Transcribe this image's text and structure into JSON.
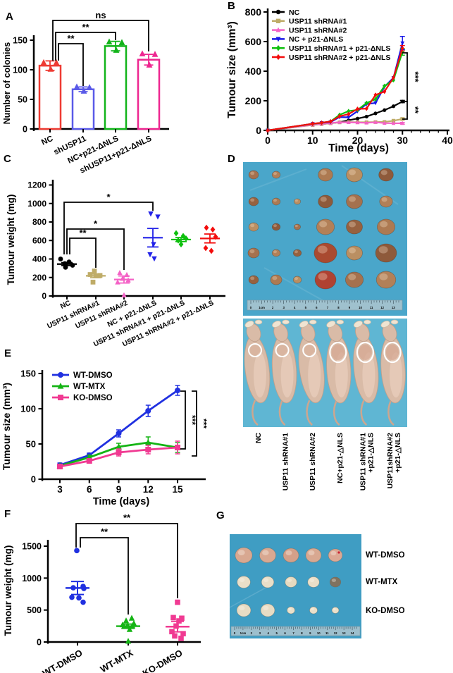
{
  "panels": {
    "A": "A",
    "B": "B",
    "C": "C",
    "D": "D",
    "E": "E",
    "F": "F",
    "G": "G"
  },
  "chart_data": [
    {
      "panel": "A",
      "type": "bar",
      "title": "",
      "ylabel": "Number of colonies",
      "xlabel": "",
      "ylim": [
        0,
        150
      ],
      "yticks": [
        0,
        50,
        100,
        150
      ],
      "categories": [
        "NC",
        "shUSP11",
        "NC+p21-ΔNLS",
        "shUSP11+p21-ΔNLS"
      ],
      "values": [
        107,
        67,
        140,
        117
      ],
      "errors": [
        8,
        4,
        8,
        9
      ],
      "replicates": [
        [
          112,
          101,
          112
        ],
        [
          71,
          64,
          70
        ],
        [
          147,
          133,
          146
        ],
        [
          127,
          108,
          126
        ]
      ],
      "bar_colors": [
        "#EE3B33",
        "#5A5AE8",
        "#12B41A",
        "#EE2690"
      ],
      "significance": [
        {
          "from": 0,
          "to": 1,
          "label": "**"
        },
        {
          "from": 0,
          "to": 2,
          "label": "**"
        },
        {
          "from": 0,
          "to": 3,
          "label": "ns"
        }
      ]
    },
    {
      "panel": "B",
      "type": "line",
      "title": "",
      "ylabel": "Tumour size (mm³)",
      "xlabel": "Time (days)",
      "ylim": [
        0,
        800
      ],
      "yticks": [
        0,
        200,
        400,
        600,
        800
      ],
      "xlim": [
        0,
        40
      ],
      "xticks": [
        0,
        10,
        20,
        30,
        40
      ],
      "x": [
        0,
        10,
        12,
        14,
        16,
        18,
        20,
        22,
        24,
        26,
        28,
        30
      ],
      "legend_position": "top-left",
      "series": [
        {
          "name": "NC",
          "color": "#000000",
          "values": [
            0,
            38,
            43,
            48,
            55,
            68,
            80,
            93,
            115,
            137,
            163,
            195
          ],
          "last_error": 8
        },
        {
          "name": "USP11 shRNA#1",
          "color": "#BFAC68",
          "values": [
            0,
            36,
            42,
            48,
            54,
            56,
            55,
            55,
            56,
            57,
            65,
            77
          ],
          "last_error": 7
        },
        {
          "name": "USP11 shRNA#2",
          "color": "#F462C6",
          "values": [
            0,
            38,
            44,
            50,
            55,
            54,
            53,
            51,
            55,
            49,
            48,
            48
          ],
          "last_error": 6
        },
        {
          "name": "NC + p21-ΔNLS",
          "color": "#1717E8",
          "values": [
            0,
            45,
            51,
            56,
            90,
            88,
            130,
            178,
            185,
            295,
            355,
            590
          ],
          "last_error": 45
        },
        {
          "name": "USP11 shRNA#1 + p21-ΔNLS",
          "color": "#0EC00E",
          "values": [
            0,
            44,
            51,
            60,
            105,
            130,
            138,
            185,
            210,
            300,
            340,
            530
          ],
          "last_error": 22
        },
        {
          "name": "USP11 shRNA#2 + p21-ΔNLS",
          "color": "#F30C0C",
          "values": [
            0,
            45,
            52,
            60,
            95,
            110,
            145,
            147,
            240,
            262,
            357,
            555
          ],
          "last_error": 18
        }
      ],
      "significance": [
        {
          "label": "***"
        },
        {
          "label": "**"
        }
      ]
    },
    {
      "panel": "C",
      "type": "scatter",
      "title": "",
      "ylabel": "Tumour weight (mg)",
      "xlabel": "",
      "ylim": [
        0,
        1200
      ],
      "yticks": [
        0,
        200,
        400,
        600,
        800,
        1000,
        1200
      ],
      "groups": [
        {
          "name": "NC",
          "color": "#000000",
          "marker": "circle",
          "points": [
            400,
            368,
            350,
            332,
            310
          ],
          "mean": 345,
          "sem": 16
        },
        {
          "name": "USP11 shRNA#1",
          "color": "#BFAC68",
          "marker": "square",
          "points": [
            270,
            232,
            222,
            218,
            150
          ],
          "mean": 218,
          "sem": 20
        },
        {
          "name": "USP11 shRNA#2",
          "color": "#F462C6",
          "marker": "triangle",
          "points": [
            250,
            228,
            188,
            170,
            148,
            8
          ],
          "mean": 178,
          "sem": 38
        },
        {
          "name": "NC + p21-ΔNLS",
          "color": "#2222E8",
          "marker": "tdown",
          "points": [
            890,
            858,
            560,
            450,
            405
          ],
          "mean": 630,
          "sem": 100
        },
        {
          "name": "USP11 shRNA#1 + p21-ΔNLS",
          "color": "#0EC00E",
          "marker": "diamond",
          "points": [
            678,
            648,
            622,
            600,
            558
          ],
          "mean": 610,
          "sem": 22
        },
        {
          "name": "USP11 shRNA#2 + p21-ΔNLS",
          "color": "#F30C0C",
          "marker": "diamond",
          "points": [
            738,
            718,
            640,
            518,
            488
          ],
          "mean": 622,
          "sem": 48
        }
      ],
      "significance": [
        {
          "from": 0,
          "to": 1,
          "label": "**"
        },
        {
          "from": 0,
          "to": 2,
          "label": "*"
        },
        {
          "from": 0,
          "to": 3,
          "label": "*"
        }
      ]
    },
    {
      "panel": "E",
      "type": "line",
      "title": "",
      "ylabel": "Tumour size (mm³)",
      "xlabel": "Time (days)",
      "ylim": [
        0,
        150
      ],
      "yticks": [
        0,
        50,
        100,
        150
      ],
      "x": [
        3,
        6,
        9,
        12,
        15
      ],
      "xticks": [
        3,
        6,
        9,
        12,
        15
      ],
      "legend_position": "top-left",
      "series": [
        {
          "name": "WT-DMSO",
          "color": "#2030E0",
          "marker": "circle",
          "values": [
            20,
            34,
            65,
            97,
            126
          ],
          "errors": [
            3,
            3,
            5,
            8,
            7
          ]
        },
        {
          "name": "WT-MTX",
          "color": "#15B415",
          "marker": "triangle",
          "values": [
            19,
            31,
            46,
            52,
            45
          ],
          "errors": [
            2,
            3,
            5,
            8,
            7
          ]
        },
        {
          "name": "KO-DMSO",
          "color": "#F03A92",
          "marker": "square",
          "values": [
            18,
            26,
            38,
            42,
            45
          ],
          "errors": [
            2,
            3,
            5,
            6,
            9
          ]
        }
      ],
      "significance": [
        {
          "label": "***"
        },
        {
          "label": "***"
        }
      ]
    },
    {
      "panel": "F",
      "type": "scatter",
      "title": "",
      "ylabel": "Tumour weight (mg)",
      "xlabel": "",
      "ylim": [
        0,
        1500
      ],
      "yticks": [
        0,
        500,
        1000,
        1500
      ],
      "groups": [
        {
          "name": "WT-DMSO",
          "color": "#2030E0",
          "marker": "circle",
          "points": [
            1430,
            870,
            848,
            838,
            700,
            690,
            622
          ],
          "mean": 845,
          "sem": 102
        },
        {
          "name": "WT-MTX",
          "color": "#15B415",
          "marker": "triangle",
          "points": [
            372,
            332,
            292,
            268,
            255,
            250,
            242,
            195,
            12
          ],
          "mean": 247,
          "sem": 33
        },
        {
          "name": "KO-DMSO",
          "color": "#F03A92",
          "marker": "square",
          "points": [
            622,
            382,
            372,
            330,
            250,
            162,
            130,
            95,
            58
          ],
          "mean": 240,
          "sem": 82
        }
      ],
      "significance": [
        {
          "from": 0,
          "to": 1,
          "label": "**"
        },
        {
          "from": 0,
          "to": 2,
          "label": "**"
        }
      ]
    }
  ],
  "panel_d": {
    "tumor_rows": 5,
    "tumor_cols": 6,
    "ruler_labels": [
      "0",
      "1cm",
      "2",
      "3",
      "4",
      "5",
      "6",
      "7",
      "8",
      "9",
      "10",
      "11",
      "12",
      "13"
    ],
    "mice_count": 6,
    "group_labels": [
      [
        "NC"
      ],
      [
        "USP11 shRNA#1"
      ],
      [
        "USP11 shRNA#2"
      ],
      [
        "NC+p21-△NLS"
      ],
      [
        "USP11 shRNA#1",
        "+p21-△NLS"
      ],
      [
        "USP11shRNA#2",
        "+p21-△NLS"
      ]
    ]
  },
  "panel_g": {
    "tumor_rows": 3,
    "tumor_cols": 5,
    "ruler_labels": [
      "0",
      "1cm",
      "2",
      "3",
      "4",
      "5",
      "6",
      "7",
      "8",
      "9",
      "10",
      "11",
      "12",
      "13",
      "14"
    ],
    "row_labels": [
      "WT-DMSO",
      "WT-MTX",
      "KO-DMSO"
    ]
  },
  "colors": {
    "photo_d_bg": "#4AA6CA",
    "photo_mice_bg": "#5FB6D3",
    "photo_g_bg": "#3F9DC3"
  }
}
